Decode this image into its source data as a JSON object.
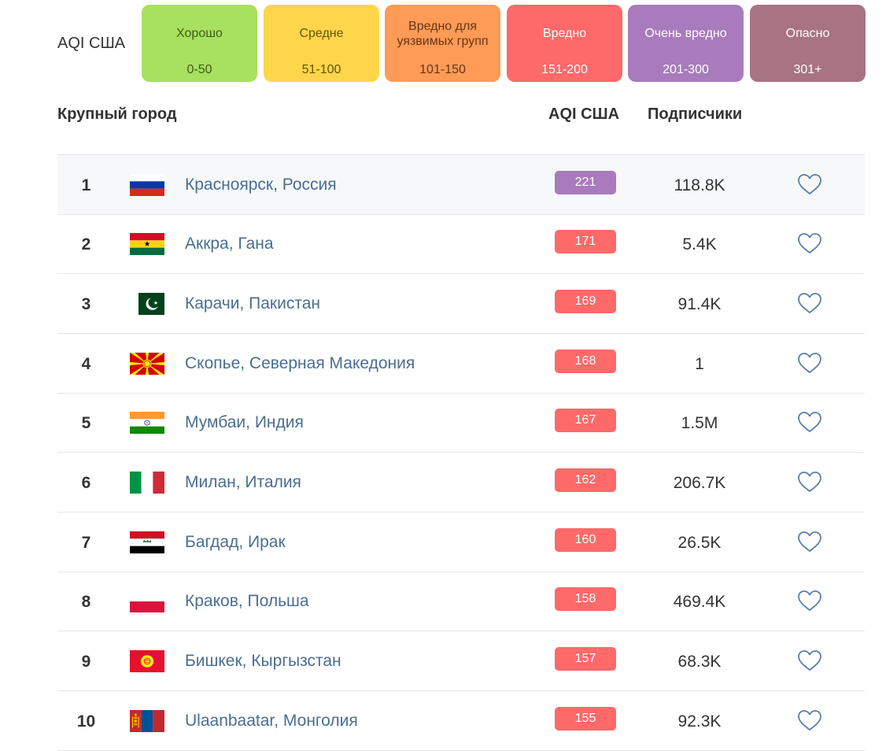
{
  "legend": {
    "label": "AQI США",
    "items": [
      {
        "name": "Хорошо",
        "range": "0-50",
        "color": "#a8e05f",
        "text": "#3b5c14"
      },
      {
        "name": "Средне",
        "range": "51-100",
        "color": "#fdd64b",
        "text": "#6b5200"
      },
      {
        "name": "Вредно для уязвимых групп",
        "range": "101-150",
        "color": "#fe9b57",
        "text": "#6a3413"
      },
      {
        "name": "Вредно",
        "range": "151-200",
        "color": "#fe6a69",
        "text": "#ffffff"
      },
      {
        "name": "Очень вредно",
        "range": "201-300",
        "color": "#a97abc",
        "text": "#ffffff"
      },
      {
        "name": "Опасно",
        "range": "301+",
        "color": "#a87383",
        "text": "#ffffff"
      }
    ]
  },
  "table": {
    "headers": {
      "city": "Крупный город",
      "aqi": "AQI США",
      "subscribers": "Подписчики"
    },
    "rows": [
      {
        "rank": "1",
        "city": "Красноярск, Россия",
        "aqi": "221",
        "aqi_color": "#a97abc",
        "subs": "118.8K",
        "flag": "ru"
      },
      {
        "rank": "2",
        "city": "Аккра, Гана",
        "aqi": "171",
        "aqi_color": "#fe6a69",
        "subs": "5.4K",
        "flag": "gh"
      },
      {
        "rank": "3",
        "city": "Карачи, Пакистан",
        "aqi": "169",
        "aqi_color": "#fe6a69",
        "subs": "91.4K",
        "flag": "pk"
      },
      {
        "rank": "4",
        "city": "Скопье, Северная Македония",
        "aqi": "168",
        "aqi_color": "#fe6a69",
        "subs": "1",
        "flag": "mk"
      },
      {
        "rank": "5",
        "city": "Мумбаи, Индия",
        "aqi": "167",
        "aqi_color": "#fe6a69",
        "subs": "1.5M",
        "flag": "in"
      },
      {
        "rank": "6",
        "city": "Милан, Италия",
        "aqi": "162",
        "aqi_color": "#fe6a69",
        "subs": "206.7K",
        "flag": "it"
      },
      {
        "rank": "7",
        "city": "Багдад, Ирак",
        "aqi": "160",
        "aqi_color": "#fe6a69",
        "subs": "26.5K",
        "flag": "iq"
      },
      {
        "rank": "8",
        "city": "Краков, Польша",
        "aqi": "158",
        "aqi_color": "#fe6a69",
        "subs": "469.4K",
        "flag": "pl"
      },
      {
        "rank": "9",
        "city": "Бишкек, Кыргызстан",
        "aqi": "157",
        "aqi_color": "#fe6a69",
        "subs": "68.3K",
        "flag": "kg"
      },
      {
        "rank": "10",
        "city": "Ulaanbaatar, Монголия",
        "aqi": "155",
        "aqi_color": "#fe6a69",
        "subs": "92.3K",
        "flag": "mn"
      }
    ]
  }
}
